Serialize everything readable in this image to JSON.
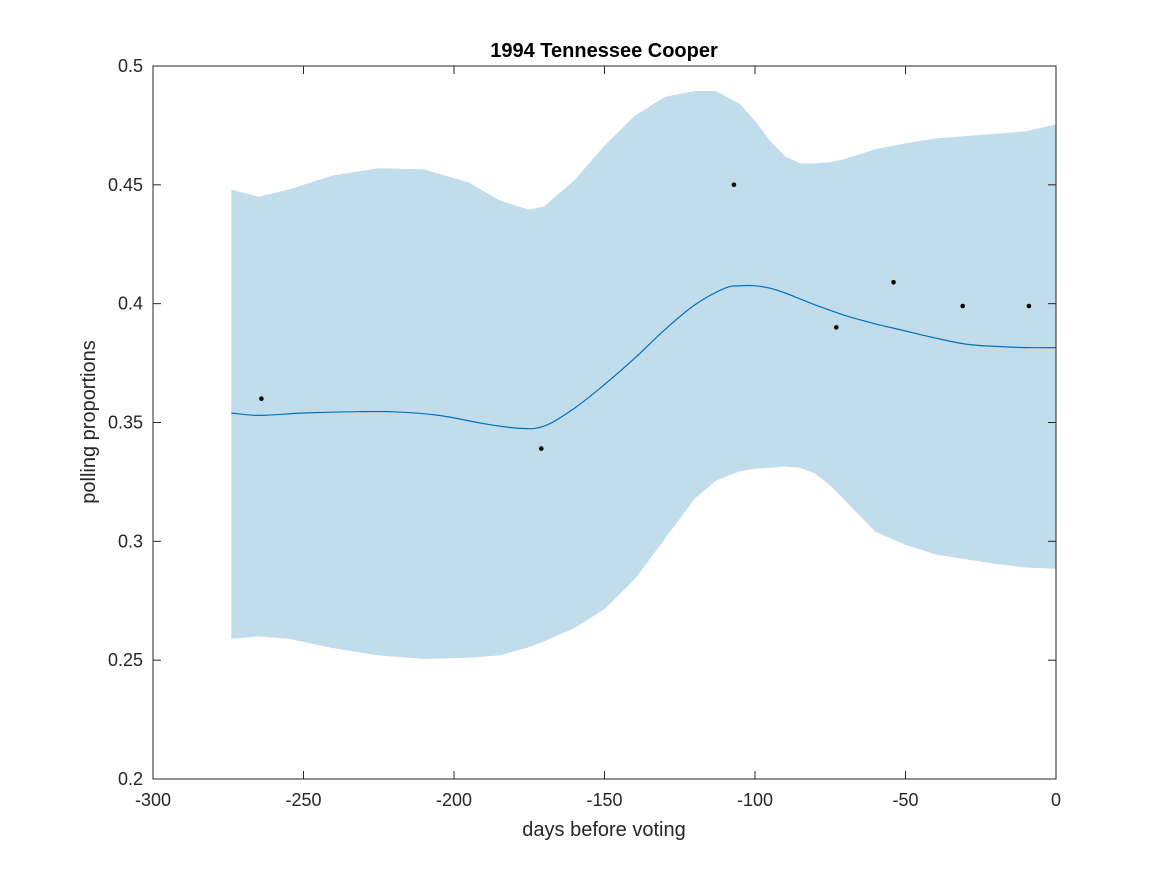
{
  "chart_data": {
    "type": "line",
    "title": "1994 Tennessee Cooper",
    "xlabel": "days before voting",
    "ylabel": "polling proportions",
    "xlim": [
      -300,
      0
    ],
    "ylim": [
      0.2,
      0.5
    ],
    "xticks": [
      -300,
      -250,
      -200,
      -150,
      -100,
      -50,
      0
    ],
    "yticks": [
      0.2,
      0.25,
      0.3,
      0.35,
      0.4,
      0.45,
      0.5
    ],
    "grid": false,
    "colors": {
      "band": "#c1dceb",
      "line": "#0072bd",
      "points": "#000000",
      "axes": "#262626"
    },
    "series": [
      {
        "kind": "line",
        "x": [
          -274,
          -265,
          -250,
          -235,
          -220,
          -205,
          -190,
          -178,
          -170,
          -160,
          -150,
          -140,
          -130,
          -120,
          -110,
          -105,
          -100,
          -95,
          -90,
          -85,
          -80,
          -70,
          -60,
          -50,
          -40,
          -30,
          -20,
          -10,
          0
        ],
        "values": [
          0.354,
          0.353,
          0.354,
          0.3545,
          0.3545,
          0.353,
          0.3495,
          0.3475,
          0.3485,
          0.356,
          0.366,
          0.377,
          0.389,
          0.3995,
          0.4065,
          0.4075,
          0.4075,
          0.4065,
          0.4045,
          0.402,
          0.3995,
          0.395,
          0.3915,
          0.3885,
          0.3855,
          0.383,
          0.382,
          0.3815,
          0.3815
        ]
      },
      {
        "kind": "band",
        "x": [
          -274,
          -265,
          -255,
          -240,
          -225,
          -210,
          -195,
          -185,
          -175,
          -170,
          -160,
          -150,
          -140,
          -130,
          -120,
          -113,
          -105,
          -100,
          -95,
          -90,
          -85,
          -80,
          -75,
          -70,
          -60,
          -50,
          -40,
          -30,
          -20,
          -10,
          0
        ],
        "upper": [
          0.448,
          0.445,
          0.448,
          0.454,
          0.457,
          0.4565,
          0.451,
          0.4435,
          0.4395,
          0.441,
          0.452,
          0.4665,
          0.479,
          0.487,
          0.4895,
          0.4895,
          0.484,
          0.477,
          0.4685,
          0.462,
          0.459,
          0.459,
          0.4595,
          0.461,
          0.465,
          0.4675,
          0.4695,
          0.4705,
          0.4715,
          0.4725,
          0.4755
        ],
        "lower": [
          0.259,
          0.26,
          0.259,
          0.255,
          0.252,
          0.2505,
          0.251,
          0.252,
          0.2555,
          0.258,
          0.2635,
          0.2715,
          0.284,
          0.301,
          0.318,
          0.3255,
          0.3295,
          0.3305,
          0.331,
          0.3315,
          0.331,
          0.3285,
          0.3235,
          0.317,
          0.304,
          0.2985,
          0.2945,
          0.2925,
          0.2905,
          0.289,
          0.2885
        ]
      },
      {
        "kind": "scatter",
        "x": [
          -264,
          -171,
          -107,
          -73,
          -54,
          -31,
          -9
        ],
        "values": [
          0.36,
          0.339,
          0.45,
          0.39,
          0.409,
          0.399,
          0.399
        ]
      }
    ]
  }
}
